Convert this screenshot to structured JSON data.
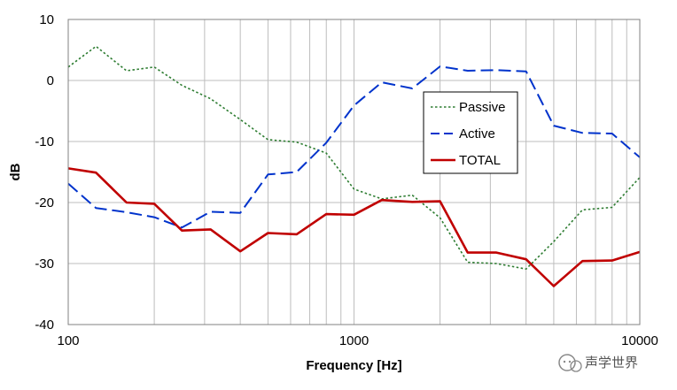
{
  "chart_data": {
    "type": "line",
    "title": "",
    "xlabel": "Frequency [Hz]",
    "ylabel": "dB",
    "xscale": "log",
    "xlim": [
      100,
      10000
    ],
    "ylim": [
      -40,
      10
    ],
    "xticks": [
      100,
      1000,
      10000
    ],
    "xtick_labels": [
      "100",
      "1000",
      "10000"
    ],
    "yticks": [
      10,
      0,
      -10,
      -20,
      -30,
      -40
    ],
    "ytick_labels": [
      "10",
      "0",
      "-10",
      "-20",
      "-30",
      "-40"
    ],
    "grid": true,
    "legend_position": "top-right",
    "x": [
      100,
      125,
      160,
      200,
      250,
      315,
      400,
      500,
      630,
      800,
      1000,
      1250,
      1600,
      2000,
      2500,
      3150,
      4000,
      5000,
      6300,
      8000,
      10000
    ],
    "series": [
      {
        "name": "Passive",
        "style": "dotted",
        "color": "#2e7d32",
        "values": [
          2.2,
          5.6,
          1.6,
          2.2,
          -0.8,
          -3.0,
          -6.4,
          -9.7,
          -10.1,
          -11.9,
          -17.8,
          -19.4,
          -18.8,
          -22.5,
          -29.8,
          -30.0,
          -30.9,
          -26.4,
          -21.2,
          -20.8,
          -15.9
        ]
      },
      {
        "name": "Active",
        "style": "dashed",
        "color": "#0033cc",
        "values": [
          -16.9,
          -20.9,
          -21.6,
          -22.4,
          -24.1,
          -21.5,
          -21.7,
          -15.4,
          -15.0,
          -10.2,
          -4.1,
          -0.3,
          -1.3,
          2.3,
          1.6,
          1.7,
          1.5,
          -7.4,
          -8.6,
          -8.7,
          -12.6
        ]
      },
      {
        "name": "TOTAL",
        "style": "solid",
        "color": "#c00000",
        "values": [
          -14.4,
          -15.1,
          -20.0,
          -20.2,
          -24.6,
          -24.4,
          -28.0,
          -25.0,
          -25.2,
          -21.9,
          -22.0,
          -19.6,
          -19.9,
          -19.8,
          -28.2,
          -28.2,
          -29.3,
          -33.7,
          -29.6,
          -29.5,
          -28.1
        ]
      }
    ]
  },
  "watermark": {
    "icon": "wechat-logo-icon",
    "text": "声学世界"
  }
}
